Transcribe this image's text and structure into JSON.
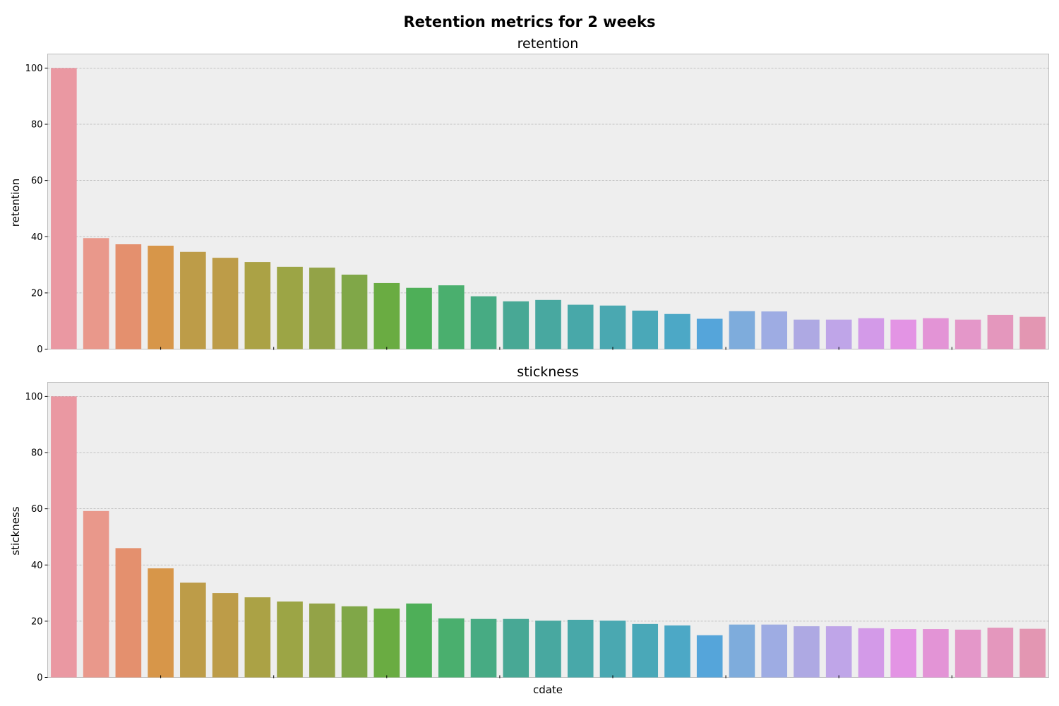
{
  "figure": {
    "suptitle": "Retention metrics for 2 weeks"
  },
  "chart_data": [
    {
      "type": "bar",
      "title": "retention",
      "ylabel": "retention",
      "xlabel": "",
      "ylim": [
        0,
        105
      ],
      "yticks": [
        0,
        20,
        40,
        60,
        80,
        100
      ],
      "grid": true,
      "values": [
        100,
        39.5,
        37.3,
        36.8,
        34.6,
        32.5,
        31.0,
        29.3,
        29.0,
        26.5,
        23.5,
        21.8,
        22.7,
        18.8,
        17.0,
        17.5,
        15.8,
        15.5,
        13.7,
        12.5,
        10.8,
        13.5,
        13.4,
        10.5,
        10.5,
        11.0,
        10.5,
        11.0,
        10.5,
        12.2,
        11.5
      ],
      "colors": [
        "#ea98a2",
        "#e9988b",
        "#e4906e",
        "#d79649",
        "#bd9c48",
        "#bd9c48",
        "#aba245",
        "#9ca545",
        "#93a347",
        "#80a748",
        "#6aac42",
        "#4eaf58",
        "#4aaf6e",
        "#47ab83",
        "#48a895",
        "#48a8a0",
        "#48a8a9",
        "#4aa8b1",
        "#4aa8b8",
        "#4ca8c6",
        "#55a5da",
        "#7eacdc",
        "#9eace3",
        "#aea9e3",
        "#bfa5e8",
        "#d39ae8",
        "#e394e4",
        "#e394d6",
        "#e497c9",
        "#e497bd",
        "#e396b2"
      ]
    },
    {
      "type": "bar",
      "title": "stickness",
      "ylabel": "stickness",
      "xlabel": "cdate",
      "ylim": [
        0,
        105
      ],
      "yticks": [
        0,
        20,
        40,
        60,
        80,
        100
      ],
      "grid": true,
      "values": [
        100,
        59.2,
        46.0,
        38.8,
        33.7,
        30.0,
        28.5,
        27.0,
        26.3,
        25.3,
        24.5,
        26.3,
        21.0,
        20.8,
        20.8,
        20.2,
        20.5,
        20.2,
        19.0,
        18.5,
        15.0,
        18.8,
        18.8,
        18.2,
        18.2,
        17.5,
        17.2,
        17.2,
        17.0,
        17.7,
        17.3
      ],
      "colors": [
        "#ea98a2",
        "#e9988b",
        "#e4906e",
        "#d79649",
        "#bd9c48",
        "#bd9c48",
        "#aba245",
        "#9ca545",
        "#93a347",
        "#80a748",
        "#6aac42",
        "#4eaf58",
        "#4aaf6e",
        "#47ab83",
        "#48a895",
        "#48a8a0",
        "#48a8a9",
        "#4aa8b1",
        "#4aa8b8",
        "#4ca8c6",
        "#55a5da",
        "#7eacdc",
        "#9eace3",
        "#aea9e3",
        "#bfa5e8",
        "#d39ae8",
        "#e394e4",
        "#e394d6",
        "#e497c9",
        "#e497bd",
        "#e396b2"
      ]
    }
  ]
}
